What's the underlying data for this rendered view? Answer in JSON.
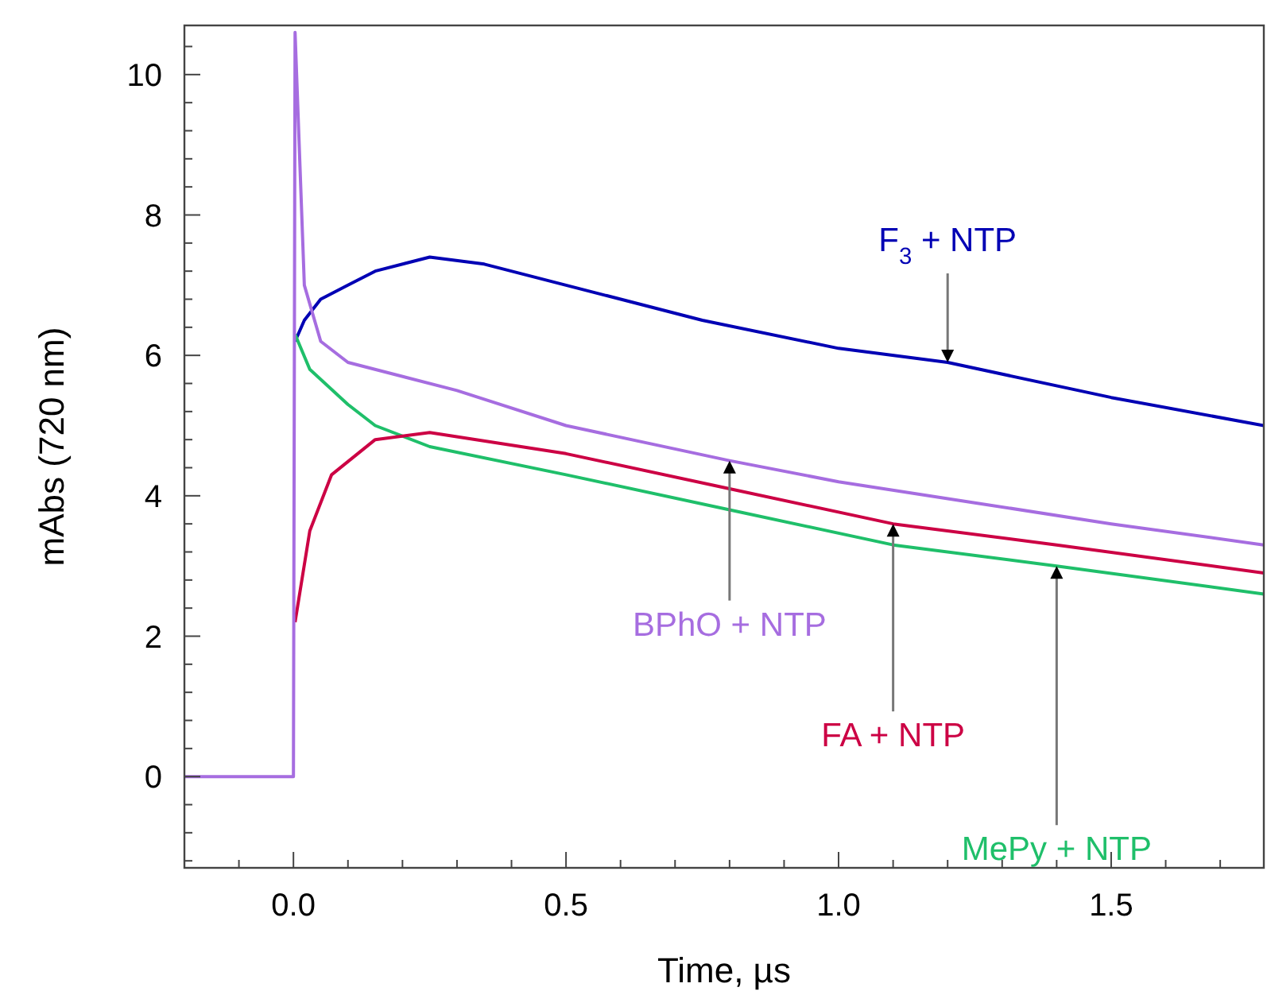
{
  "chart_data": {
    "type": "line",
    "xlabel": "Time, µs",
    "ylabel": "mAbs (720 nm)",
    "xlim": [
      -0.2,
      1.78
    ],
    "ylim": [
      -1.3,
      10.7
    ],
    "xticks": [
      {
        "value": -0.1,
        "label": null
      },
      {
        "value": 0,
        "label": "0.0"
      },
      {
        "value": 0.1,
        "label": null
      },
      {
        "value": 0.2,
        "label": null
      },
      {
        "value": 0.3,
        "label": null
      },
      {
        "value": 0.4,
        "label": null
      },
      {
        "value": 0.5,
        "label": "0.5"
      },
      {
        "value": 0.6,
        "label": null
      },
      {
        "value": 0.7,
        "label": null
      },
      {
        "value": 0.8,
        "label": null
      },
      {
        "value": 0.9,
        "label": null
      },
      {
        "value": 1,
        "label": "1.0"
      },
      {
        "value": 1.1,
        "label": null
      },
      {
        "value": 1.2,
        "label": null
      },
      {
        "value": 1.3,
        "label": null
      },
      {
        "value": 1.4,
        "label": null
      },
      {
        "value": 1.5,
        "label": "1.5"
      },
      {
        "value": 1.6,
        "label": null
      },
      {
        "value": 1.7,
        "label": null
      }
    ],
    "yticks": [
      {
        "value": -1.2,
        "label": null
      },
      {
        "value": -0.8,
        "label": null
      },
      {
        "value": -0.4,
        "label": null
      },
      0,
      {
        "value": 0.4,
        "label": null
      },
      {
        "value": 0.8,
        "label": null
      },
      {
        "value": 1.2,
        "label": null
      },
      {
        "value": 1.6,
        "label": null
      },
      2,
      {
        "value": 2.4,
        "label": null
      },
      {
        "value": 2.8,
        "label": null
      },
      {
        "value": 3.2,
        "label": null
      },
      {
        "value": 3.6,
        "label": null
      },
      4,
      {
        "value": 4.4,
        "label": null
      },
      {
        "value": 4.8,
        "label": null
      },
      {
        "value": 5.2,
        "label": null
      },
      {
        "value": 5.6,
        "label": null
      },
      6,
      {
        "value": 6.4,
        "label": null
      },
      {
        "value": 6.8,
        "label": null
      },
      {
        "value": 7.2,
        "label": null
      },
      {
        "value": 7.6,
        "label": null
      },
      8,
      {
        "value": 8.4,
        "label": null
      },
      {
        "value": 8.8,
        "label": null
      },
      {
        "value": 9.2,
        "label": null
      },
      {
        "value": 9.6,
        "label": null
      },
      10,
      {
        "value": 10.4,
        "label": null
      }
    ],
    "grid": false,
    "marker": "none",
    "line_style": "solid",
    "series": [
      {
        "color": "#0000b4",
        "x": [
          0.003,
          0.02,
          0.05,
          0.1,
          0.15,
          0.25,
          0.35,
          0.5,
          0.75,
          1,
          1.2,
          1.5,
          1.78
        ],
        "values": [
          6.2,
          6.5,
          6.8,
          7.0,
          7.2,
          7.4,
          7.3,
          7.0,
          6.5,
          6.1,
          5.9,
          5.4,
          5.0
        ]
      },
      {
        "color": "#1fbf6a",
        "x": [
          0.003,
          0.03,
          0.1,
          0.15,
          0.25,
          0.5,
          0.8,
          1.1,
          1.4,
          1.78
        ],
        "values": [
          6.3,
          5.8,
          5.3,
          5.0,
          4.7,
          4.3,
          3.8,
          3.3,
          3.0,
          2.6
        ]
      },
      {
        "color": "#cc0044",
        "x": [
          0.003,
          0.03,
          0.07,
          0.15,
          0.25,
          0.5,
          0.8,
          1.1,
          1.4,
          1.78
        ],
        "values": [
          2.2,
          3.5,
          4.3,
          4.8,
          4.9,
          4.6,
          4.1,
          3.6,
          3.3,
          2.9
        ]
      },
      {
        "color": "#a66de0",
        "x": [
          -0.2,
          -0.1,
          0,
          0.003,
          0.02,
          0.05,
          0.1,
          0.3,
          0.5,
          0.8,
          1,
          1.25,
          1.5,
          1.78
        ],
        "values": [
          0,
          0,
          0,
          10.6,
          7.0,
          6.2,
          5.9,
          5.5,
          5.0,
          4.5,
          4.2,
          3.9,
          3.6,
          3.3
        ]
      }
    ],
    "annotations": [
      {
        "text": "F$_{3}$ + NTP",
        "x": 1.2,
        "y": 5.9
      },
      {
        "text": "BPhO + NTP",
        "x": 0.8,
        "y": 4.5
      },
      {
        "text": "FA + NTP",
        "x": 1.1,
        "y": 3.6
      },
      {
        "text": "MePy + NTP",
        "x": 1.4,
        "y": 3.0
      }
    ]
  }
}
